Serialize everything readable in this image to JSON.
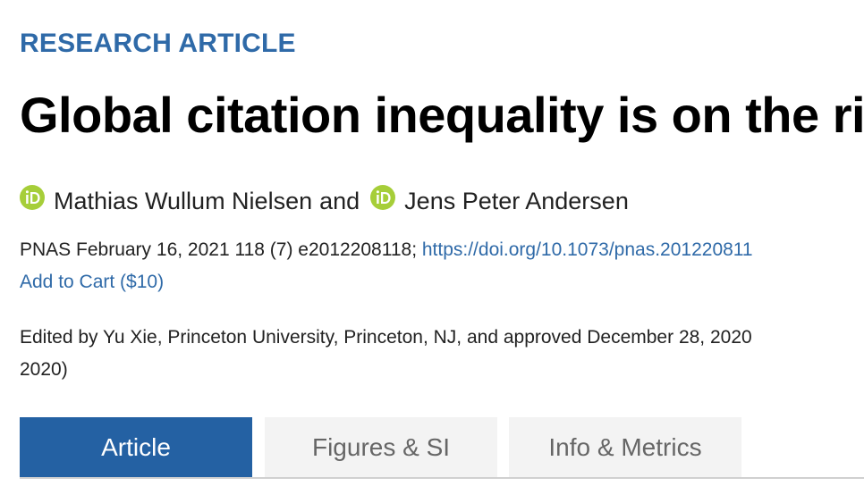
{
  "article": {
    "kicker": "RESEARCH ARTICLE",
    "title": "Global citation inequality is on the ri",
    "authors": [
      {
        "name": "Mathias Wullum Nielsen",
        "icon": "orcid-icon"
      },
      {
        "name": "Jens Peter Andersen",
        "icon": "orcid-icon"
      }
    ],
    "author_conjunction": "and",
    "citation": {
      "text": "PNAS February 16, 2021 118 (7) e2012208118; ",
      "doi": "https://doi.org/10.1073/pnas.201220811"
    },
    "cart_label": "Add to Cart ($10)",
    "edited": {
      "line1": "Edited by Yu Xie, Princeton University, Princeton, NJ, and approved December 28, 2020",
      "line2": "2020)"
    }
  },
  "tabs": [
    {
      "label": "Article",
      "active": true
    },
    {
      "label": "Figures & SI",
      "active": false
    },
    {
      "label": "Info & Metrics",
      "active": false
    }
  ],
  "colors": {
    "accent": "#2f6aa8",
    "active_tab": "#2461a3",
    "orcid_green": "#a6ce39",
    "inactive_tab_bg": "#f3f3f3"
  }
}
